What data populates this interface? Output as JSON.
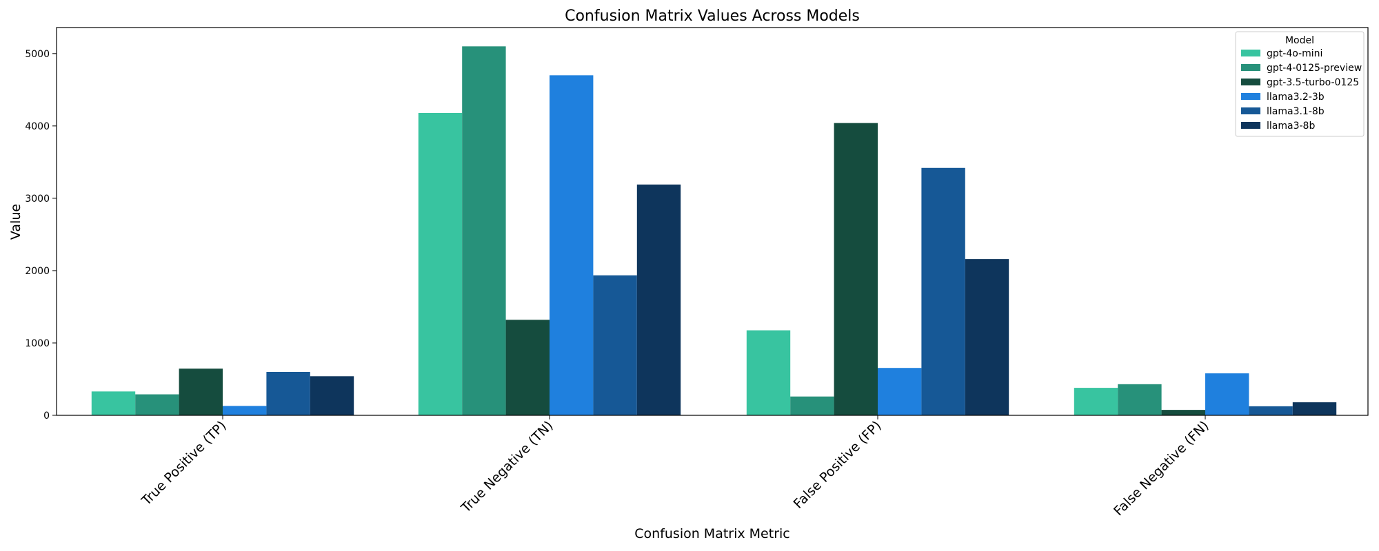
{
  "chart_data": {
    "type": "bar",
    "title": "Confusion Matrix Values Across Models",
    "xlabel": "Confusion Matrix Metric",
    "ylabel": "Value",
    "ylim": [
      0,
      5360
    ],
    "yticks": [
      0,
      1000,
      2000,
      3000,
      4000,
      5000
    ],
    "categories": [
      "True Positive (TP)",
      "True Negative (TN)",
      "False Positive (FP)",
      "False Negative (FN)"
    ],
    "legend_title": "Model",
    "legend_position": "top-right",
    "grid": false,
    "series": [
      {
        "name": "gpt-4o-mini",
        "color": "#38c4a0",
        "values": [
          330,
          4180,
          1175,
          380
        ]
      },
      {
        "name": "gpt-4-0125-preview",
        "color": "#27917a",
        "values": [
          290,
          5100,
          260,
          430
        ]
      },
      {
        "name": "gpt-3.5-turbo-0125",
        "color": "#154c3e",
        "values": [
          645,
          1320,
          4040,
          75
        ]
      },
      {
        "name": "llama3.2-3b",
        "color": "#1f80de",
        "values": [
          130,
          4700,
          655,
          580
        ]
      },
      {
        "name": "llama3.1-8b",
        "color": "#165896",
        "values": [
          600,
          1935,
          3420,
          125
        ]
      },
      {
        "name": "llama3-8b",
        "color": "#0e355c",
        "values": [
          540,
          3190,
          2160,
          180
        ]
      }
    ]
  }
}
